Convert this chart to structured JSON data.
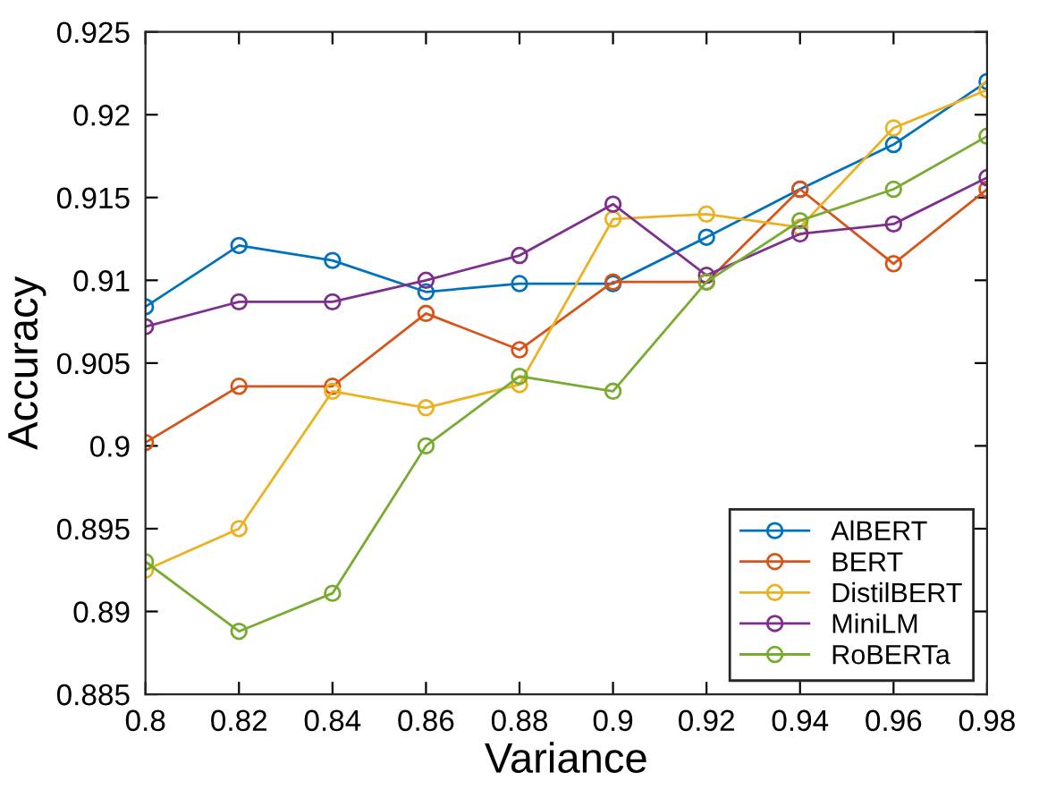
{
  "chart_data": {
    "type": "line",
    "xlabel": "Variance",
    "ylabel": "Accuracy",
    "x": [
      0.8,
      0.82,
      0.84,
      0.86,
      0.88,
      0.9,
      0.92,
      0.94,
      0.96,
      0.98
    ],
    "series": [
      {
        "name": "AlBERT",
        "color": "#0072bd",
        "values": [
          0.9084,
          0.9121,
          0.9112,
          0.9093,
          0.9098,
          0.9098,
          0.9126,
          0.9155,
          0.9182,
          0.922
        ]
      },
      {
        "name": "BERT",
        "color": "#d95319",
        "values": [
          0.9002,
          0.9036,
          0.9036,
          0.908,
          0.9058,
          0.9099,
          0.9099,
          0.9155,
          0.911,
          0.9155
        ]
      },
      {
        "name": "DistilBERT",
        "color": "#edb120",
        "values": [
          0.8925,
          0.895,
          0.9033,
          0.9023,
          0.9037,
          0.9137,
          0.914,
          0.9132,
          0.9192,
          0.9215
        ]
      },
      {
        "name": "MiniLM",
        "color": "#7e2f8e",
        "values": [
          0.9072,
          0.9087,
          0.9087,
          0.91,
          0.9115,
          0.9146,
          0.9103,
          0.9128,
          0.9134,
          0.9162
        ]
      },
      {
        "name": "RoBERTa",
        "color": "#77ac30",
        "values": [
          0.893,
          0.8888,
          0.8911,
          0.9,
          0.9042,
          0.9033,
          0.9099,
          0.9136,
          0.9155,
          0.9187
        ]
      }
    ],
    "xlim": [
      0.8,
      0.98
    ],
    "xticks": [
      0.8,
      0.82,
      0.84,
      0.86,
      0.88,
      0.9,
      0.92,
      0.94,
      0.96,
      0.98
    ],
    "ylim": [
      0.885,
      0.925
    ],
    "yticks": [
      0.885,
      0.89,
      0.895,
      0.9,
      0.905,
      0.91,
      0.915,
      0.92,
      0.925
    ],
    "grid": false,
    "legend": "bottom right",
    "marker": "circle",
    "line_style": "solid"
  }
}
